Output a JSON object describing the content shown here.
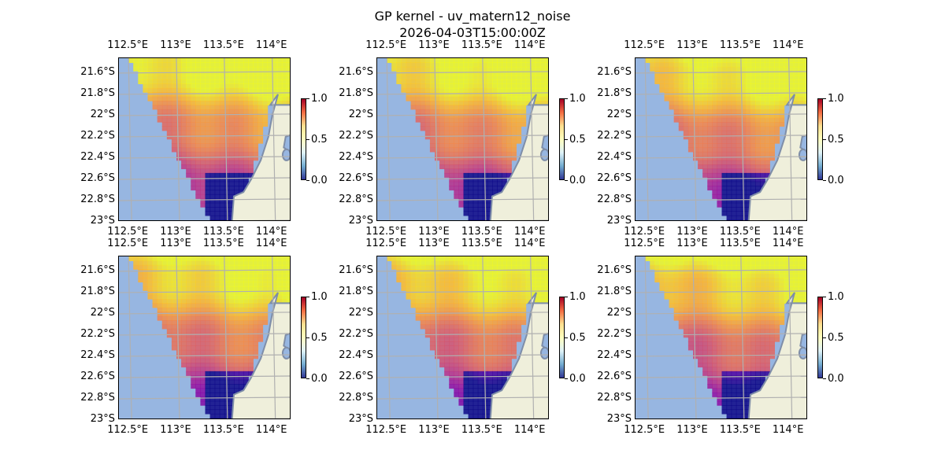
{
  "figure": {
    "title": "GP kernel - uv_matern12_noise",
    "subtitle": "2026-04-03T15:00:00Z"
  },
  "axes": {
    "lon_ticks": [
      "112.5°E",
      "113°E",
      "113.5°E",
      "114°E"
    ],
    "lat_ticks": [
      "21.6°S",
      "21.8°S",
      "22°S",
      "22.2°S",
      "22.4°S",
      "22.6°S",
      "22.8°S",
      "23°S"
    ],
    "lon_values": [
      112.5,
      113.0,
      113.5,
      114.0
    ],
    "lat_values": [
      -21.6,
      -21.8,
      -22.0,
      -22.2,
      -22.4,
      -22.6,
      -22.8,
      -23.0
    ],
    "lon_range": [
      112.4,
      114.2
    ],
    "lat_range": [
      -23.0,
      -21.46
    ]
  },
  "colorbar": {
    "ticks": [
      "1.0",
      "0.5",
      "0.0"
    ],
    "range": [
      0.0,
      1.0
    ],
    "colormap": "RdYlBu_r"
  },
  "colors": {
    "ocean": "#97b6e1",
    "land": "#efefdb",
    "coast": "#7f8ea8",
    "grid": "#b0b0b0"
  },
  "panels": [
    {
      "id": 1,
      "row": 1,
      "col": 1
    },
    {
      "id": 2,
      "row": 1,
      "col": 2
    },
    {
      "id": 3,
      "row": 1,
      "col": 3
    },
    {
      "id": 4,
      "row": 2,
      "col": 1
    },
    {
      "id": 5,
      "row": 2,
      "col": 2
    },
    {
      "id": 6,
      "row": 2,
      "col": 3
    }
  ]
}
